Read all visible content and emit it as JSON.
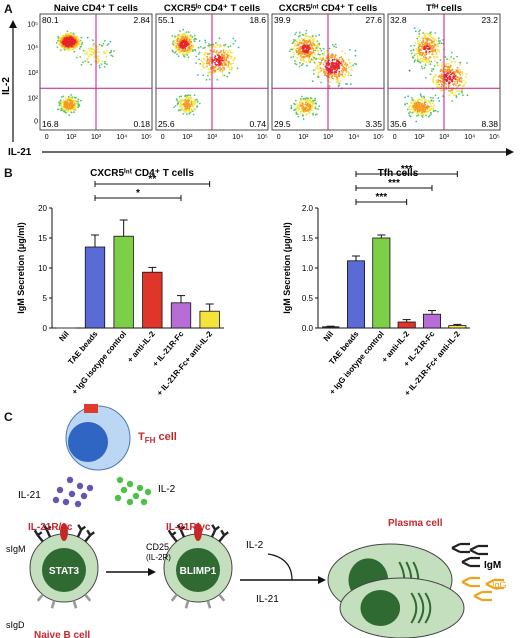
{
  "panels": {
    "a": "A",
    "b": "B",
    "c": "C"
  },
  "colors": {
    "quad_line": "#c71585",
    "bar_blue": "#5b6bd6",
    "bar_green": "#7ccf47",
    "bar_red": "#e0352b",
    "bar_purple": "#b66ed6",
    "bar_yellow": "#f3e33a",
    "cell_green": "#2f6a32",
    "cell_light": "#c4dfbd",
    "red_text": "#c6282e",
    "il21_dots": "#6a52b0",
    "il2_dots": "#4ec046",
    "antibody_dark": "#222222",
    "antibody_igg": "#f0a21a"
  },
  "flow": {
    "y_axis_label": "IL-2",
    "x_axis_label": "IL-21",
    "y_ticks": [
      "10⁵",
      "10⁴",
      "10³",
      "10²",
      "0"
    ],
    "x_ticks": [
      "0",
      "10²",
      "10³",
      "10⁴",
      "10⁵"
    ],
    "plots": [
      {
        "title": "Naive CD4⁺ T cells",
        "q_ul": "80.1",
        "q_ur": "2.84",
        "q_ll": "16.8",
        "q_lr": "0.18"
      },
      {
        "title": "CXCR5ˡᵒ CD4⁺ T cells",
        "q_ul": "55.1",
        "q_ur": "18.6",
        "q_ll": "25.6",
        "q_lr": "0.74"
      },
      {
        "title": "CXCR5ⁱⁿᵗ CD4⁺ T cells",
        "q_ul": "39.9",
        "q_ur": "27.6",
        "q_ll": "29.5",
        "q_lr": "3.35"
      },
      {
        "title": "Tᶠᴴ cells",
        "q_ul": "32.8",
        "q_ur": "23.2",
        "q_ll": "35.6",
        "q_lr": "8.38"
      }
    ]
  },
  "chart_data": [
    {
      "type": "bar",
      "title": "CXCR5ⁱⁿᵗ CD4⁺ T cells",
      "ylabel": "IgM Secretion (μg/ml)",
      "ylim": [
        0,
        20
      ],
      "yticks": [
        "0",
        "5",
        "10",
        "15",
        "20"
      ],
      "categories": [
        "Nil",
        "TAE beads",
        "+ IgG isotype control",
        "+ anti-IL-2",
        "+ IL-21R-Fc",
        "+ IL-21R-Fc+ anti-IL-2"
      ],
      "values": [
        0,
        13.5,
        15.3,
        9.3,
        4.2,
        2.8
      ],
      "errors": [
        0,
        2.0,
        2.7,
        0.8,
        1.2,
        1.2
      ],
      "significance": [
        {
          "from": 1,
          "to": 4,
          "label": "*"
        },
        {
          "from": 1,
          "to": 5,
          "label": "**"
        }
      ]
    },
    {
      "type": "bar",
      "title": "Tfh cells",
      "ylabel": "IgM Secretion (μg/ml)",
      "ylim": [
        0,
        2.0
      ],
      "yticks": [
        "0.0",
        "0.5",
        "1.0",
        "1.5",
        "2.0"
      ],
      "categories": [
        "Nil",
        "TAE beads",
        "+ IgG isotype control",
        "+ anti-IL-2",
        "+ IL-21R-Fc",
        "+ IL-21R-Fc+ anti-IL-2"
      ],
      "values": [
        0.02,
        1.12,
        1.5,
        0.1,
        0.23,
        0.04
      ],
      "errors": [
        0.01,
        0.08,
        0.05,
        0.04,
        0.06,
        0.02
      ],
      "significance": [
        {
          "from": 1,
          "to": 3,
          "label": "***"
        },
        {
          "from": 1,
          "to": 4,
          "label": "***"
        },
        {
          "from": 1,
          "to": 5,
          "label": "***"
        }
      ]
    }
  ],
  "diagram": {
    "tfh_label": "T",
    "tfh_sub": "FH",
    "tfh_suffix": " cell",
    "il21": "IL-21",
    "il2": "IL-2",
    "receptor_left": "IL-21R/γc",
    "receptor_right": "IL-21R/γc",
    "sigm": "sIgM",
    "sigd": "sIgD",
    "stat3": "STAT3",
    "blimp1": "BLIMP1",
    "cd25": "CD25",
    "il2r": "(IL-2R)",
    "naive_b": "Naive B cell",
    "arrow_il2": "IL-2",
    "arrow_il21": "IL-21",
    "plasma": "Plasma cell",
    "igm": "IgM",
    "igg": "IgG"
  }
}
